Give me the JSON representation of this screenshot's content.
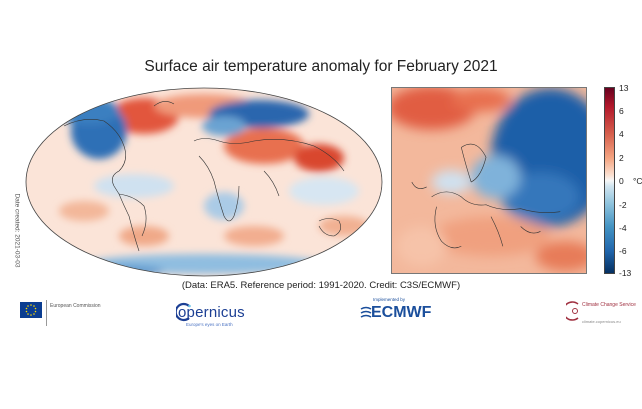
{
  "title": "Surface air temperature anomaly for February 2021",
  "side_label": "Date created: 2021-03-03",
  "credit": "(Data: ERA5.  Reference period: 1991-2020.  Credit: C3S/ECMWF)",
  "colorbar": {
    "unit_label": "°C",
    "ticks": [
      "13",
      "6",
      "4",
      "2",
      "0",
      "-2",
      "-4",
      "-6",
      "-13"
    ],
    "top_color": "#67001f",
    "bottom_color": "#053061"
  },
  "logos": {
    "eu_text": "European Commission",
    "copernicus_word": "opernicus",
    "copernicus_letter": "C",
    "copernicus_sub": "Europe's eyes on Earth",
    "ecmwf_word": "ECMWF",
    "ecmwf_sub": "Implemented by",
    "c3s_text": "Climate Change Service",
    "c3s_sub": "climate.copernicus.eu"
  }
}
